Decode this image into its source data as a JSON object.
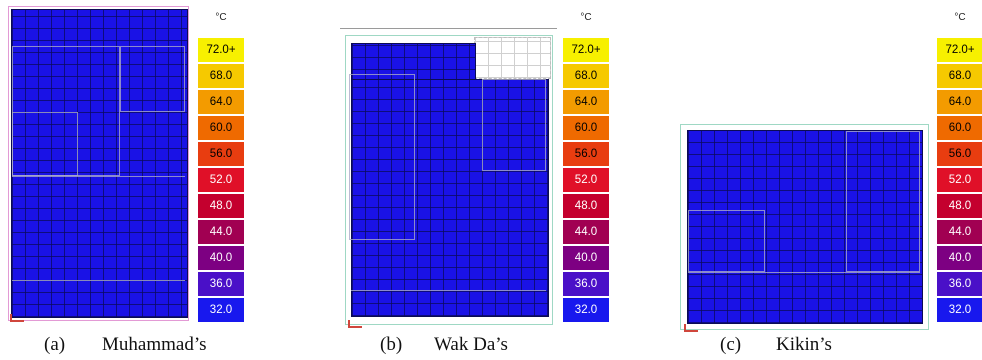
{
  "legend": {
    "unit": "°C",
    "entries": [
      {
        "label": "72.0+",
        "color": "#f7f000",
        "text": "#000000"
      },
      {
        "label": "68.0",
        "color": "#f6c900",
        "text": "#000000"
      },
      {
        "label": "64.0",
        "color": "#f39b00",
        "text": "#000000"
      },
      {
        "label": "60.0",
        "color": "#ef6a00",
        "text": "#000000"
      },
      {
        "label": "56.0",
        "color": "#e83d10",
        "text": "#000000"
      },
      {
        "label": "52.0",
        "color": "#e01028",
        "text": "#ffffff"
      },
      {
        "label": "48.0",
        "color": "#c4002e",
        "text": "#ffffff"
      },
      {
        "label": "44.0",
        "color": "#a10052",
        "text": "#ffffff"
      },
      {
        "label": "40.0",
        "color": "#7d0082",
        "text": "#ffffff"
      },
      {
        "label": "36.0",
        "color": "#4a10c8",
        "text": "#ffffff"
      },
      {
        "label": "32.0",
        "color": "#1818ee",
        "text": "#ffffff"
      }
    ]
  },
  "panels": [
    {
      "letter": "(a)",
      "name": "Muhammad’s"
    },
    {
      "letter": "(b)",
      "name": "Wak Da’s"
    },
    {
      "letter": "(c)",
      "name": "Kikin’s"
    }
  ]
}
